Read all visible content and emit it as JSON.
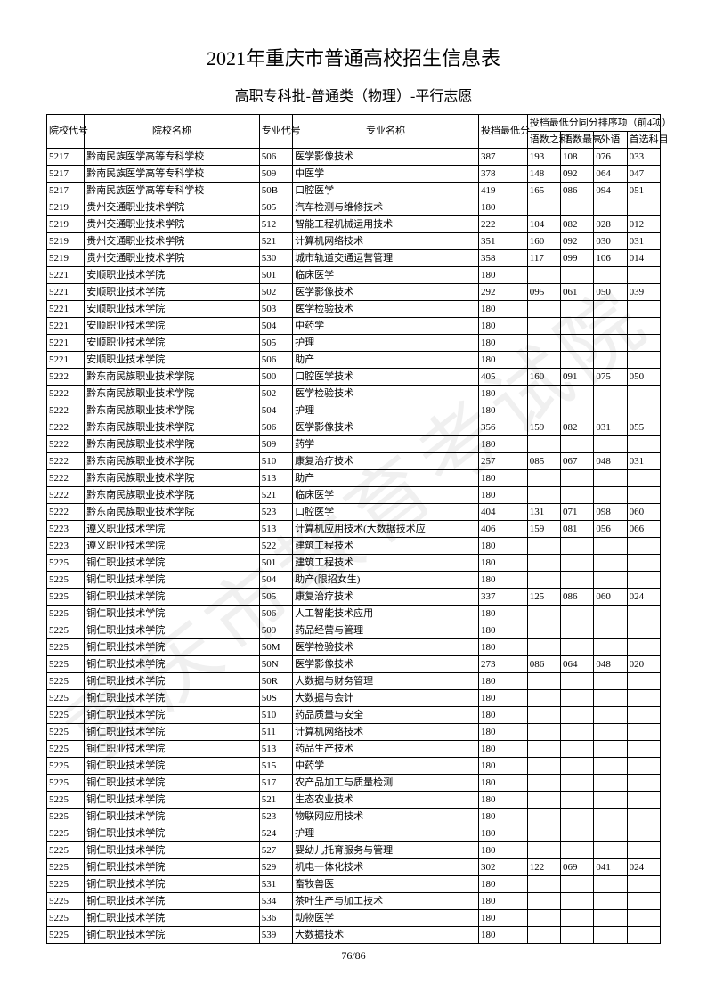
{
  "title": "2021年重庆市普通高校招生信息表",
  "subtitle": "高职专科批-普通类（物理）-平行志愿",
  "watermark": "重庆市教育考试院",
  "page_number": "76/86",
  "headers": {
    "school_code": "院校代号",
    "school_name": "院校名称",
    "major_code": "专业代号",
    "major_name": "专业名称",
    "min_score": "投档最低分",
    "tiebreak_group": "投档最低分同分排序项（前4项）",
    "sub1": "语数之和",
    "sub2": "语数最高",
    "sub3": "外语",
    "sub4": "首选科目"
  },
  "column_widths": {
    "school_code": 34,
    "school_name": 158,
    "major_code": 30,
    "major_name": 168,
    "min_score": 44,
    "sub1": 30,
    "sub2": 30,
    "sub3": 30,
    "sub4": 30
  },
  "rows": [
    [
      "5217",
      "黔南民族医学高等专科学校",
      "506",
      "医学影像技术",
      "387",
      "193",
      "108",
      "076",
      "033"
    ],
    [
      "5217",
      "黔南民族医学高等专科学校",
      "509",
      "中医学",
      "378",
      "148",
      "092",
      "064",
      "047"
    ],
    [
      "5217",
      "黔南民族医学高等专科学校",
      "50B",
      "口腔医学",
      "419",
      "165",
      "086",
      "094",
      "051"
    ],
    [
      "5219",
      "贵州交通职业技术学院",
      "505",
      "汽车检测与维修技术",
      "180",
      "",
      "",
      "",
      ""
    ],
    [
      "5219",
      "贵州交通职业技术学院",
      "512",
      "智能工程机械运用技术",
      "222",
      "104",
      "082",
      "028",
      "012"
    ],
    [
      "5219",
      "贵州交通职业技术学院",
      "521",
      "计算机网络技术",
      "351",
      "160",
      "092",
      "030",
      "031"
    ],
    [
      "5219",
      "贵州交通职业技术学院",
      "530",
      "城市轨道交通运营管理",
      "358",
      "117",
      "099",
      "106",
      "014"
    ],
    [
      "5221",
      "安顺职业技术学院",
      "501",
      "临床医学",
      "180",
      "",
      "",
      "",
      ""
    ],
    [
      "5221",
      "安顺职业技术学院",
      "502",
      "医学影像技术",
      "292",
      "095",
      "061",
      "050",
      "039"
    ],
    [
      "5221",
      "安顺职业技术学院",
      "503",
      "医学检验技术",
      "180",
      "",
      "",
      "",
      ""
    ],
    [
      "5221",
      "安顺职业技术学院",
      "504",
      "中药学",
      "180",
      "",
      "",
      "",
      ""
    ],
    [
      "5221",
      "安顺职业技术学院",
      "505",
      "护理",
      "180",
      "",
      "",
      "",
      ""
    ],
    [
      "5221",
      "安顺职业技术学院",
      "506",
      "助产",
      "180",
      "",
      "",
      "",
      ""
    ],
    [
      "5222",
      "黔东南民族职业技术学院",
      "500",
      "口腔医学技术",
      "405",
      "160",
      "091",
      "075",
      "050"
    ],
    [
      "5222",
      "黔东南民族职业技术学院",
      "502",
      "医学检验技术",
      "180",
      "",
      "",
      "",
      ""
    ],
    [
      "5222",
      "黔东南民族职业技术学院",
      "504",
      "护理",
      "180",
      "",
      "",
      "",
      ""
    ],
    [
      "5222",
      "黔东南民族职业技术学院",
      "506",
      "医学影像技术",
      "356",
      "159",
      "082",
      "031",
      "055"
    ],
    [
      "5222",
      "黔东南民族职业技术学院",
      "509",
      "药学",
      "180",
      "",
      "",
      "",
      ""
    ],
    [
      "5222",
      "黔东南民族职业技术学院",
      "510",
      "康复治疗技术",
      "257",
      "085",
      "067",
      "048",
      "031"
    ],
    [
      "5222",
      "黔东南民族职业技术学院",
      "513",
      "助产",
      "180",
      "",
      "",
      "",
      ""
    ],
    [
      "5222",
      "黔东南民族职业技术学院",
      "521",
      "临床医学",
      "180",
      "",
      "",
      "",
      ""
    ],
    [
      "5222",
      "黔东南民族职业技术学院",
      "523",
      "口腔医学",
      "404",
      "131",
      "071",
      "098",
      "060"
    ],
    [
      "5223",
      "遵义职业技术学院",
      "513",
      "计算机应用技术(大数据技术应",
      "406",
      "159",
      "081",
      "056",
      "066"
    ],
    [
      "5223",
      "遵义职业技术学院",
      "522",
      "建筑工程技术",
      "180",
      "",
      "",
      "",
      ""
    ],
    [
      "5225",
      "铜仁职业技术学院",
      "501",
      "建筑工程技术",
      "180",
      "",
      "",
      "",
      ""
    ],
    [
      "5225",
      "铜仁职业技术学院",
      "504",
      "助产(限招女生)",
      "180",
      "",
      "",
      "",
      ""
    ],
    [
      "5225",
      "铜仁职业技术学院",
      "505",
      "康复治疗技术",
      "337",
      "125",
      "086",
      "060",
      "024"
    ],
    [
      "5225",
      "铜仁职业技术学院",
      "506",
      "人工智能技术应用",
      "180",
      "",
      "",
      "",
      ""
    ],
    [
      "5225",
      "铜仁职业技术学院",
      "509",
      "药品经营与管理",
      "180",
      "",
      "",
      "",
      ""
    ],
    [
      "5225",
      "铜仁职业技术学院",
      "50M",
      "医学检验技术",
      "180",
      "",
      "",
      "",
      ""
    ],
    [
      "5225",
      "铜仁职业技术学院",
      "50N",
      "医学影像技术",
      "273",
      "086",
      "064",
      "048",
      "020"
    ],
    [
      "5225",
      "铜仁职业技术学院",
      "50R",
      "大数据与财务管理",
      "180",
      "",
      "",
      "",
      ""
    ],
    [
      "5225",
      "铜仁职业技术学院",
      "50S",
      "大数据与会计",
      "180",
      "",
      "",
      "",
      ""
    ],
    [
      "5225",
      "铜仁职业技术学院",
      "510",
      "药品质量与安全",
      "180",
      "",
      "",
      "",
      ""
    ],
    [
      "5225",
      "铜仁职业技术学院",
      "511",
      "计算机网络技术",
      "180",
      "",
      "",
      "",
      ""
    ],
    [
      "5225",
      "铜仁职业技术学院",
      "513",
      "药品生产技术",
      "180",
      "",
      "",
      "",
      ""
    ],
    [
      "5225",
      "铜仁职业技术学院",
      "515",
      "中药学",
      "180",
      "",
      "",
      "",
      ""
    ],
    [
      "5225",
      "铜仁职业技术学院",
      "517",
      "农产品加工与质量检测",
      "180",
      "",
      "",
      "",
      ""
    ],
    [
      "5225",
      "铜仁职业技术学院",
      "521",
      "生态农业技术",
      "180",
      "",
      "",
      "",
      ""
    ],
    [
      "5225",
      "铜仁职业技术学院",
      "523",
      "物联网应用技术",
      "180",
      "",
      "",
      "",
      ""
    ],
    [
      "5225",
      "铜仁职业技术学院",
      "524",
      "护理",
      "180",
      "",
      "",
      "",
      ""
    ],
    [
      "5225",
      "铜仁职业技术学院",
      "527",
      "婴幼儿托育服务与管理",
      "180",
      "",
      "",
      "",
      ""
    ],
    [
      "5225",
      "铜仁职业技术学院",
      "529",
      "机电一体化技术",
      "302",
      "122",
      "069",
      "041",
      "024"
    ],
    [
      "5225",
      "铜仁职业技术学院",
      "531",
      "畜牧兽医",
      "180",
      "",
      "",
      "",
      ""
    ],
    [
      "5225",
      "铜仁职业技术学院",
      "534",
      "茶叶生产与加工技术",
      "180",
      "",
      "",
      "",
      ""
    ],
    [
      "5225",
      "铜仁职业技术学院",
      "536",
      "动物医学",
      "180",
      "",
      "",
      "",
      ""
    ],
    [
      "5225",
      "铜仁职业技术学院",
      "539",
      "大数据技术",
      "180",
      "",
      "",
      "",
      ""
    ]
  ]
}
